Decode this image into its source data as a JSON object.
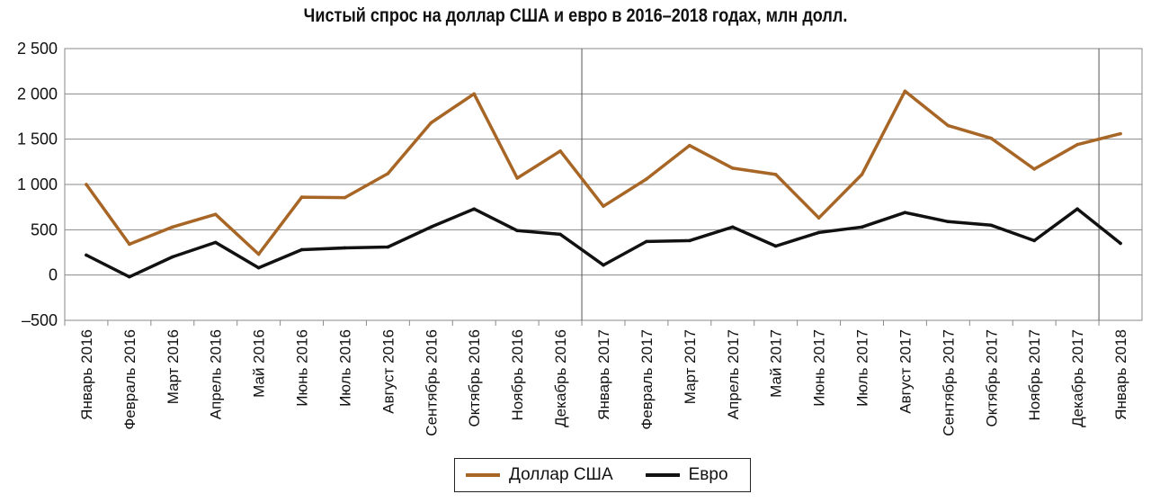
{
  "chart_data": {
    "type": "line",
    "title": "Чистый спрос на доллар США и евро в 2016–2018 годах, млн долл.",
    "categories": [
      "Январь 2016",
      "Февраль 2016",
      "Март 2016",
      "Апрель 2016",
      "Май 2016",
      "Июнь 2016",
      "Июль 2016",
      "Август 2016",
      "Сентябрь 2016",
      "Октябрь 2016",
      "Ноябрь 2016",
      "Декабрь 2016",
      "Январь 2017",
      "Февраль 2017",
      "Март 2017",
      "Апрель 2017",
      "Май 2017",
      "Июнь 2017",
      "Июль 2017",
      "Август 2017",
      "Сентябрь 2017",
      "Октябрь 2017",
      "Ноябрь 2017",
      "Декабрь 2017",
      "Январь 2018"
    ],
    "series": [
      {
        "name": "Доллар США",
        "color": "#a86626",
        "values": [
          1000,
          340,
          530,
          670,
          230,
          860,
          855,
          1120,
          1680,
          2000,
          1070,
          1370,
          760,
          1060,
          1430,
          1180,
          1110,
          630,
          1110,
          2030,
          1650,
          1510,
          1170,
          1440,
          1560
        ]
      },
      {
        "name": "Евро",
        "color": "#111111",
        "values": [
          220,
          -20,
          200,
          360,
          80,
          280,
          300,
          310,
          530,
          730,
          490,
          450,
          110,
          370,
          380,
          530,
          320,
          470,
          530,
          690,
          590,
          550,
          380,
          730,
          350
        ]
      }
    ],
    "ylim": [
      -500,
      2500
    ],
    "yticks": [
      -500,
      0,
      500,
      1000,
      1500,
      2000,
      2500
    ],
    "ytick_labels": [
      "–500",
      "0",
      "500",
      "1 000",
      "1 500",
      "2 000",
      "2 500"
    ],
    "year_dividers_after": [
      "Декабрь 2016",
      "Декабрь 2017"
    ],
    "grid": true,
    "legend": "bottom-center"
  }
}
